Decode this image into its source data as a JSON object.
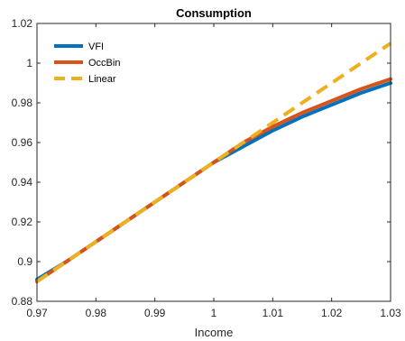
{
  "chart_data": {
    "type": "line",
    "title": "Consumption",
    "xlabel": "Income",
    "ylabel": "",
    "xlim": [
      0.97,
      1.03
    ],
    "ylim": [
      0.88,
      1.02
    ],
    "xticks": [
      0.97,
      0.98,
      0.99,
      1,
      1.01,
      1.02,
      1.03
    ],
    "xtick_labels": [
      "0.97",
      "0.98",
      "0.99",
      "1",
      "1.01",
      "1.02",
      "1.03"
    ],
    "yticks": [
      0.88,
      0.9,
      0.92,
      0.94,
      0.96,
      0.98,
      1,
      1.02
    ],
    "ytick_labels": [
      "0.88",
      "0.9",
      "0.92",
      "0.94",
      "0.96",
      "0.98",
      "1",
      "1.02"
    ],
    "grid": false,
    "legend_position": "top-left",
    "x": [
      0.97,
      0.975,
      0.98,
      0.985,
      0.99,
      0.995,
      1.0,
      1.005,
      1.01,
      1.015,
      1.02,
      1.025,
      1.03
    ],
    "series": [
      {
        "name": "VFI",
        "color": "#0072BD",
        "style": "solid",
        "values": [
          0.891,
          0.9,
          0.91,
          0.92,
          0.93,
          0.94,
          0.95,
          0.958,
          0.966,
          0.973,
          0.979,
          0.985,
          0.99
        ]
      },
      {
        "name": "OccBin",
        "color": "#D95319",
        "style": "solid",
        "values": [
          0.89,
          0.9,
          0.91,
          0.92,
          0.93,
          0.94,
          0.95,
          0.96,
          0.968,
          0.975,
          0.981,
          0.987,
          0.992
        ]
      },
      {
        "name": "Linear",
        "color": "#EDB120",
        "style": "dashed",
        "values": [
          0.89,
          0.9,
          0.91,
          0.92,
          0.93,
          0.94,
          0.95,
          0.96,
          0.97,
          0.98,
          0.99,
          1.0,
          1.01
        ]
      }
    ]
  }
}
